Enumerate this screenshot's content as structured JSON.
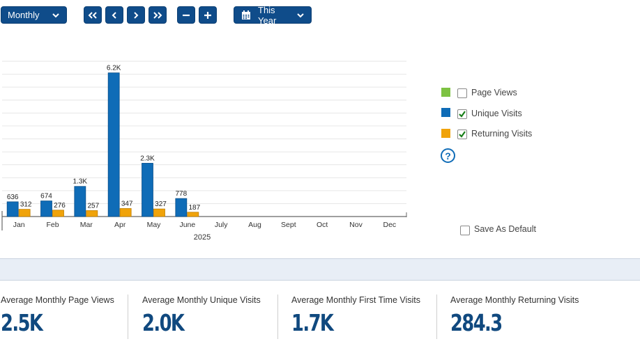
{
  "toolbar": {
    "period": "Monthly",
    "date_range": "This Year",
    "icons": [
      "chevron-down-icon",
      "double-left-icon",
      "left-icon",
      "right-icon",
      "double-right-icon",
      "minus-icon",
      "plus-icon",
      "calendar-icon"
    ]
  },
  "colors": {
    "page_views": "#7dc242",
    "unique_visits": "#0f6cb7",
    "returning_visits": "#f0a30a",
    "button": "#0f4c8a",
    "stat_value": "#10497f",
    "band": "#e8eef6"
  },
  "chart_data": {
    "type": "bar",
    "categories": [
      "Jan",
      "Feb",
      "Mar",
      "Apr",
      "May",
      "June",
      "July",
      "Aug",
      "Sept",
      "Oct",
      "Nov",
      "Dec"
    ],
    "xlabel": "2025",
    "series": [
      {
        "name": "Unique Visits",
        "values": [
          636,
          674,
          1300,
          6200,
          2300,
          778,
          null,
          null,
          null,
          null,
          null,
          null
        ],
        "labels": [
          "636",
          "674",
          "1.3K",
          "6.2K",
          "2.3K",
          "778",
          "",
          "",
          "",
          "",
          "",
          ""
        ]
      },
      {
        "name": "Returning Visits",
        "values": [
          312,
          276,
          257,
          347,
          327,
          187,
          null,
          null,
          null,
          null,
          null,
          null
        ],
        "labels": [
          "312",
          "276",
          "257",
          "347",
          "327",
          "187",
          "",
          "",
          "",
          "",
          "",
          ""
        ]
      }
    ],
    "ylim": [
      0,
      6700
    ],
    "grid": true
  },
  "legend": {
    "items": [
      {
        "label": "Page Views",
        "checked": false
      },
      {
        "label": "Unique Visits",
        "checked": true
      },
      {
        "label": "Returning Visits",
        "checked": true
      }
    ],
    "help": "?",
    "save_default": {
      "label": "Save As Default",
      "checked": false
    }
  },
  "stats": [
    {
      "label": "Average Monthly Page Views",
      "value": "2.5K"
    },
    {
      "label": "Average Monthly Unique Visits",
      "value": "2.0K"
    },
    {
      "label": "Average Monthly First Time Visits",
      "value": "1.7K"
    },
    {
      "label": "Average Monthly Returning Visits",
      "value": "284.3"
    }
  ]
}
